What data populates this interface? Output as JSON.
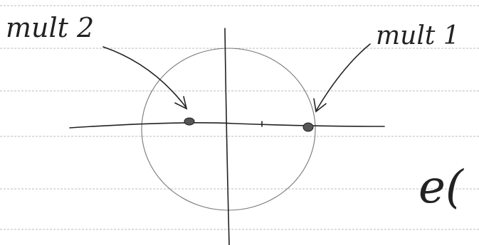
{
  "labels": {
    "left": "mult 2",
    "right": "mult 1",
    "edge": "e("
  }
}
